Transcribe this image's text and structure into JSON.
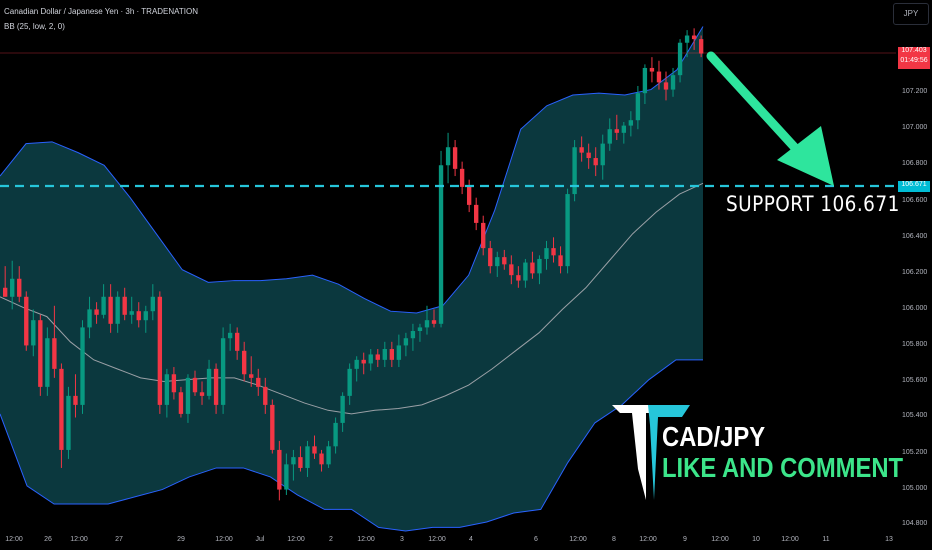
{
  "header": {
    "title": "Canadian Dollar / Japanese Yen · 3h · TRADENATION",
    "indicator": "BB (25, low, 2, 0)"
  },
  "currency_button": "JPY",
  "price_tags": {
    "last_price": "107.403",
    "countdown": "01:49:56",
    "support_price": "106.671"
  },
  "annotations": {
    "support": "SUPPORT  106.671",
    "pair": "CAD/JPY",
    "call_to_action": "LIKE AND COMMENT"
  },
  "colors": {
    "up_candle": "#089981",
    "down_candle": "#f23645",
    "band_fill": "#0c3b41",
    "band_line": "#2962ff",
    "basis_line": "#9aa0a6",
    "support_line": "#26c6da",
    "arrow": "#2ee59d",
    "price_tag": "#f23645",
    "support_tag": "#00bcd4",
    "logo_teal": "#26c6da"
  },
  "icons": {
    "logo": "trade-nation-logo-icon",
    "arrow": "down-right-arrow-icon"
  },
  "chart_data": {
    "type": "candlestick",
    "title": "Canadian Dollar / Japanese Yen · 3h · TRADENATION",
    "ylim": [
      104.8,
      107.55
    ],
    "y_ticks": [
      "107.200",
      "107.000",
      "106.800",
      "106.600",
      "106.400",
      "106.200",
      "106.000",
      "105.800",
      "105.600",
      "105.400",
      "105.200",
      "105.000",
      "104.800"
    ],
    "x_ticks": [
      "12:00",
      "26",
      "12:00",
      "27",
      "29",
      "12:00",
      "Jul",
      "12:00",
      "2",
      "12:00",
      "3",
      "12:00",
      "4",
      "6",
      "12:00",
      "8",
      "12:00",
      "9",
      "12:00",
      "10",
      "12:00",
      "11",
      "13"
    ],
    "support_level": 106.671,
    "last_price": 107.403,
    "indicator": "BB (25, low, 2, 0)",
    "candles": [
      [
        106.1,
        106.22,
        106.05,
        106.05
      ],
      [
        106.05,
        106.25,
        105.98,
        106.15
      ],
      [
        106.15,
        106.22,
        106.02,
        106.05
      ],
      [
        106.05,
        106.08,
        105.75,
        105.78
      ],
      [
        105.78,
        105.98,
        105.72,
        105.92
      ],
      [
        105.92,
        105.95,
        105.5,
        105.55
      ],
      [
        105.55,
        105.88,
        105.5,
        105.82
      ],
      [
        105.82,
        106.0,
        105.6,
        105.65
      ],
      [
        105.65,
        105.68,
        105.1,
        105.2
      ],
      [
        105.2,
        105.55,
        105.15,
        105.5
      ],
      [
        105.5,
        105.62,
        105.38,
        105.45
      ],
      [
        105.45,
        105.92,
        105.4,
        105.88
      ],
      [
        105.88,
        106.05,
        105.82,
        105.98
      ],
      [
        105.98,
        106.02,
        105.9,
        105.95
      ],
      [
        105.95,
        106.12,
        105.93,
        106.05
      ],
      [
        106.05,
        106.12,
        105.85,
        105.9
      ],
      [
        105.9,
        106.08,
        105.85,
        106.05
      ],
      [
        106.05,
        106.1,
        105.92,
        105.95
      ],
      [
        105.95,
        106.05,
        105.9,
        105.97
      ],
      [
        105.97,
        106.02,
        105.88,
        105.92
      ],
      [
        105.92,
        106.0,
        105.85,
        105.97
      ],
      [
        105.97,
        106.12,
        105.92,
        106.05
      ],
      [
        106.05,
        106.08,
        105.4,
        105.45
      ],
      [
        105.45,
        105.65,
        105.38,
        105.62
      ],
      [
        105.62,
        105.66,
        105.48,
        105.52
      ],
      [
        105.52,
        105.55,
        105.38,
        105.4
      ],
      [
        105.4,
        105.62,
        105.35,
        105.6
      ],
      [
        105.6,
        105.64,
        105.5,
        105.52
      ],
      [
        105.52,
        105.58,
        105.45,
        105.5
      ],
      [
        105.5,
        105.7,
        105.48,
        105.65
      ],
      [
        105.65,
        105.68,
        105.4,
        105.45
      ],
      [
        105.45,
        105.88,
        105.4,
        105.82
      ],
      [
        105.82,
        105.9,
        105.75,
        105.85
      ],
      [
        105.85,
        105.88,
        105.7,
        105.75
      ],
      [
        105.75,
        105.8,
        105.58,
        105.62
      ],
      [
        105.62,
        105.72,
        105.55,
        105.6
      ],
      [
        105.6,
        105.65,
        105.5,
        105.55
      ],
      [
        105.55,
        105.6,
        105.4,
        105.45
      ],
      [
        105.45,
        105.48,
        105.18,
        105.2
      ],
      [
        105.2,
        105.25,
        104.92,
        104.98
      ],
      [
        104.98,
        105.18,
        104.95,
        105.12
      ],
      [
        105.12,
        105.2,
        105.03,
        105.16
      ],
      [
        105.16,
        105.22,
        105.08,
        105.1
      ],
      [
        105.1,
        105.25,
        105.05,
        105.22
      ],
      [
        105.22,
        105.28,
        105.15,
        105.18
      ],
      [
        105.18,
        105.2,
        105.08,
        105.12
      ],
      [
        105.12,
        105.25,
        105.1,
        105.22
      ],
      [
        105.22,
        105.38,
        105.18,
        105.35
      ],
      [
        105.35,
        105.52,
        105.3,
        105.5
      ],
      [
        105.5,
        105.68,
        105.45,
        105.65
      ],
      [
        105.65,
        105.72,
        105.58,
        105.7
      ],
      [
        105.7,
        105.74,
        105.62,
        105.68
      ],
      [
        105.68,
        105.76,
        105.64,
        105.73
      ],
      [
        105.73,
        105.76,
        105.66,
        105.7
      ],
      [
        105.7,
        105.8,
        105.66,
        105.76
      ],
      [
        105.76,
        105.8,
        105.66,
        105.7
      ],
      [
        105.7,
        105.84,
        105.66,
        105.78
      ],
      [
        105.78,
        105.85,
        105.72,
        105.82
      ],
      [
        105.82,
        105.9,
        105.75,
        105.86
      ],
      [
        105.86,
        105.9,
        105.8,
        105.88
      ],
      [
        105.88,
        106.0,
        105.84,
        105.92
      ],
      [
        105.92,
        105.98,
        105.88,
        105.9
      ],
      [
        105.9,
        106.86,
        105.88,
        106.78
      ],
      [
        106.78,
        106.96,
        106.68,
        106.88
      ],
      [
        106.88,
        106.92,
        106.72,
        106.76
      ],
      [
        106.76,
        106.8,
        106.62,
        106.66
      ],
      [
        106.66,
        106.7,
        106.52,
        106.56
      ],
      [
        106.56,
        106.6,
        106.42,
        106.46
      ],
      [
        106.46,
        106.5,
        106.28,
        106.32
      ],
      [
        106.32,
        106.36,
        106.18,
        106.22
      ],
      [
        106.22,
        106.3,
        106.16,
        106.27
      ],
      [
        106.27,
        106.31,
        106.2,
        106.23
      ],
      [
        106.23,
        106.28,
        106.12,
        106.17
      ],
      [
        106.17,
        106.22,
        106.1,
        106.14
      ],
      [
        106.14,
        106.26,
        106.1,
        106.24
      ],
      [
        106.24,
        106.3,
        106.15,
        106.18
      ],
      [
        106.18,
        106.28,
        106.12,
        106.26
      ],
      [
        106.26,
        106.36,
        106.2,
        106.32
      ],
      [
        106.32,
        106.38,
        106.24,
        106.28
      ],
      [
        106.28,
        106.33,
        106.18,
        106.22
      ],
      [
        106.22,
        106.65,
        106.18,
        106.62
      ],
      [
        106.62,
        106.92,
        106.58,
        106.88
      ],
      [
        106.88,
        106.94,
        106.8,
        106.85
      ],
      [
        106.85,
        106.9,
        106.76,
        106.82
      ],
      [
        106.82,
        106.88,
        106.72,
        106.78
      ],
      [
        106.78,
        106.95,
        106.7,
        106.9
      ],
      [
        106.9,
        107.04,
        106.86,
        106.98
      ],
      [
        106.98,
        107.06,
        106.92,
        106.96
      ],
      [
        106.96,
        107.02,
        106.9,
        107.0
      ],
      [
        107.0,
        107.08,
        106.94,
        107.03
      ],
      [
        107.03,
        107.22,
        106.98,
        107.18
      ],
      [
        107.18,
        107.34,
        107.12,
        107.32
      ],
      [
        107.32,
        107.38,
        107.24,
        107.3
      ],
      [
        107.3,
        107.36,
        107.2,
        107.24
      ],
      [
        107.24,
        107.3,
        107.14,
        107.2
      ],
      [
        107.2,
        107.32,
        107.16,
        107.28
      ],
      [
        107.28,
        107.48,
        107.24,
        107.46
      ],
      [
        107.46,
        107.53,
        107.38,
        107.5
      ],
      [
        107.5,
        107.54,
        107.42,
        107.48
      ],
      [
        107.48,
        107.5,
        107.38,
        107.4
      ]
    ],
    "bb_upper": [
      106.72,
      106.9,
      106.91,
      106.85,
      106.78,
      106.6,
      106.4,
      106.2,
      106.13,
      106.14,
      106.14,
      106.15,
      106.17,
      106.12,
      106.04,
      105.97,
      105.96,
      106.0,
      106.17,
      106.53,
      106.98,
      107.11,
      107.17,
      107.18,
      107.17,
      107.2,
      107.31,
      107.55
    ],
    "bb_lower": [
      105.4,
      105.0,
      104.9,
      104.9,
      104.9,
      104.94,
      104.98,
      105.05,
      105.1,
      105.1,
      105.05,
      104.95,
      104.87,
      104.87,
      104.77,
      104.75,
      104.77,
      104.77,
      104.8,
      104.85,
      104.87,
      105.13,
      105.35,
      105.45,
      105.59,
      105.7,
      105.7
    ],
    "bb_basis": [
      106.05,
      105.99,
      105.94,
      105.8,
      105.7,
      105.65,
      105.6,
      105.58,
      105.59,
      105.6,
      105.6,
      105.56,
      105.51,
      105.46,
      105.42,
      105.4,
      105.42,
      105.43,
      105.45,
      105.5,
      105.56,
      105.65,
      105.75,
      105.85,
      105.98,
      106.1,
      106.25,
      106.4,
      106.52,
      106.62,
      106.68
    ]
  }
}
